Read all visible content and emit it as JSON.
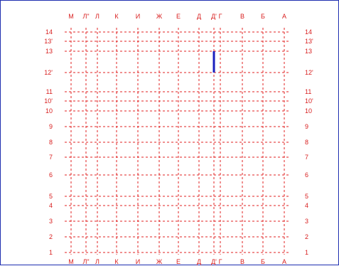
{
  "columns": [
    "М",
    "Л\"",
    "Л",
    "К",
    "И",
    "Ж",
    "Е",
    "Д",
    "Д'",
    "Г",
    "В",
    "Б",
    "А"
  ],
  "rows": [
    "14",
    "13'",
    "13",
    "12'",
    "11",
    "10'",
    "10",
    "9",
    "8",
    "7",
    "6",
    "5",
    "4",
    "3",
    "2",
    "1"
  ],
  "colors": {
    "grid": "#e02020",
    "labels": "#d81e1e",
    "marker": "#1a1fbf",
    "border": "#1f2fb0"
  },
  "marker": {
    "column": "Д'",
    "from_row": "13",
    "to_row": "12'"
  }
}
